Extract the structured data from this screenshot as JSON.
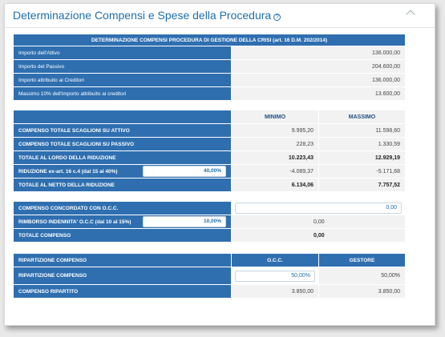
{
  "header": {
    "title": "Determinazione Compensi e Spese della Procedura",
    "help_icon": "?"
  },
  "table1": {
    "heading": "DETERMINAZIONE COMPENSI PROCEDURA DI GESTIONE DELLA CRISI (art. 16 D.M. 202/2014)",
    "rows": [
      {
        "label": "Importo dell'Attivo",
        "value": "136.000,00"
      },
      {
        "label": "Importo del Passivo",
        "value": "204.600,00"
      },
      {
        "label": "Importo attribuito ai Creditori",
        "value": "136.000,00"
      },
      {
        "label": "Massimo 10% dell'importo attribuito ai creditori",
        "value": "13.600,00"
      }
    ]
  },
  "table2": {
    "col_min": "MINIMO",
    "col_max": "MASSIMO",
    "rows": [
      {
        "label": "COMPENSO TOTALE SCAGLIONI SU ATTIVO",
        "min": "9.995,20",
        "max": "11.598,60"
      },
      {
        "label": "COMPENSO TOTALE SCAGLIONI SU PASSIVO",
        "min": "228,23",
        "max": "1.330,59"
      },
      {
        "label": "TOTALE AL LORDO DELLA RIDUZIONE",
        "min": "10.223,43",
        "max": "12.929,19"
      },
      {
        "label": "RIDUZIONE ex-art. 16 c.4 (dal 15 al 40%)",
        "input": "40,00%",
        "min": "-4.089,37",
        "max": "-5.171,68"
      },
      {
        "label": "TOTALE AL NETTO DELLA RIDUZIONE",
        "min": "6.134,06",
        "max": "7.757,52"
      }
    ]
  },
  "table3": {
    "rows": [
      {
        "label": "COMPENSO CONCORDATO CON O.C.C.",
        "input": "0,00"
      },
      {
        "label": "RIMBORSO INDENNITA' O.C.C (dal 10 al 15%)",
        "input": "10,00%",
        "value": "0,00"
      },
      {
        "label": "TOTALE COMPENSO",
        "value": "0,00"
      }
    ]
  },
  "table4": {
    "heading": "RIPARTIZIONE COMPENSO",
    "col_occ": "O.C.C.",
    "col_gestore": "GESTORE",
    "rows": [
      {
        "label": "RIPARTIZIONE COMPENSO",
        "occ_input": "50,00%",
        "gestore": "50,00%"
      },
      {
        "label": "COMPENSO RIPARTITO",
        "occ": "3.850,00",
        "gestore": "3.850,00"
      }
    ]
  }
}
